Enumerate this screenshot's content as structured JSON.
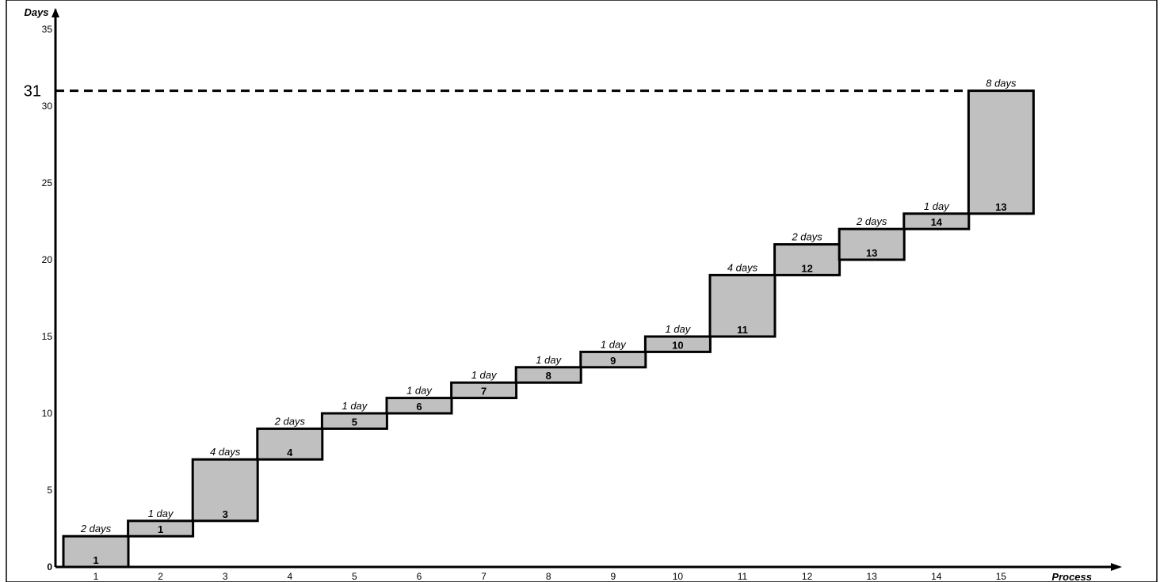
{
  "chart_data": {
    "type": "bar",
    "title": "",
    "xlabel": "Process",
    "ylabel": "Days",
    "ylim": [
      0,
      37
    ],
    "yticks": [
      0,
      5,
      10,
      15,
      20,
      25,
      30,
      35
    ],
    "x": [
      1,
      2,
      3,
      4,
      5,
      6,
      7,
      8,
      9,
      10,
      11,
      12,
      13,
      14,
      15
    ],
    "steps": [
      {
        "x": 1,
        "start": 0,
        "end": 2,
        "duration": "2 days",
        "label": "1"
      },
      {
        "x": 2,
        "start": 2,
        "end": 3,
        "duration": "1 day",
        "label": "1"
      },
      {
        "x": 3,
        "start": 3,
        "end": 7,
        "duration": "4 days",
        "label": "3"
      },
      {
        "x": 4,
        "start": 7,
        "end": 9,
        "duration": "2 days",
        "label": "4"
      },
      {
        "x": 5,
        "start": 9,
        "end": 10,
        "duration": "1 day",
        "label": "5"
      },
      {
        "x": 6,
        "start": 10,
        "end": 11,
        "duration": "1 day",
        "label": "6"
      },
      {
        "x": 7,
        "start": 11,
        "end": 12,
        "duration": "1 day",
        "label": "7"
      },
      {
        "x": 8,
        "start": 12,
        "end": 13,
        "duration": "1 day",
        "label": "8"
      },
      {
        "x": 9,
        "start": 13,
        "end": 14,
        "duration": "1 day",
        "label": "9"
      },
      {
        "x": 10,
        "start": 14,
        "end": 15,
        "duration": "1 day",
        "label": "10"
      },
      {
        "x": 11,
        "start": 15,
        "end": 19,
        "duration": "4 days",
        "label": "11"
      },
      {
        "x": 12,
        "start": 19,
        "end": 21,
        "duration": "2 days",
        "label": "12"
      },
      {
        "x": 13,
        "start": 20,
        "end": 22,
        "duration": "2 days",
        "label": "13"
      },
      {
        "x": 14,
        "start": 22,
        "end": 23,
        "duration": "1 day",
        "label": "14"
      },
      {
        "x": 15,
        "start": 23,
        "end": 31,
        "duration": "8 days",
        "label": "13"
      }
    ],
    "reference_line": {
      "value": 31,
      "label": "31",
      "style": "dashed"
    },
    "bar_fill": "#c0c0c0",
    "bar_stroke": "#000000",
    "grid": false,
    "legend": "none"
  }
}
